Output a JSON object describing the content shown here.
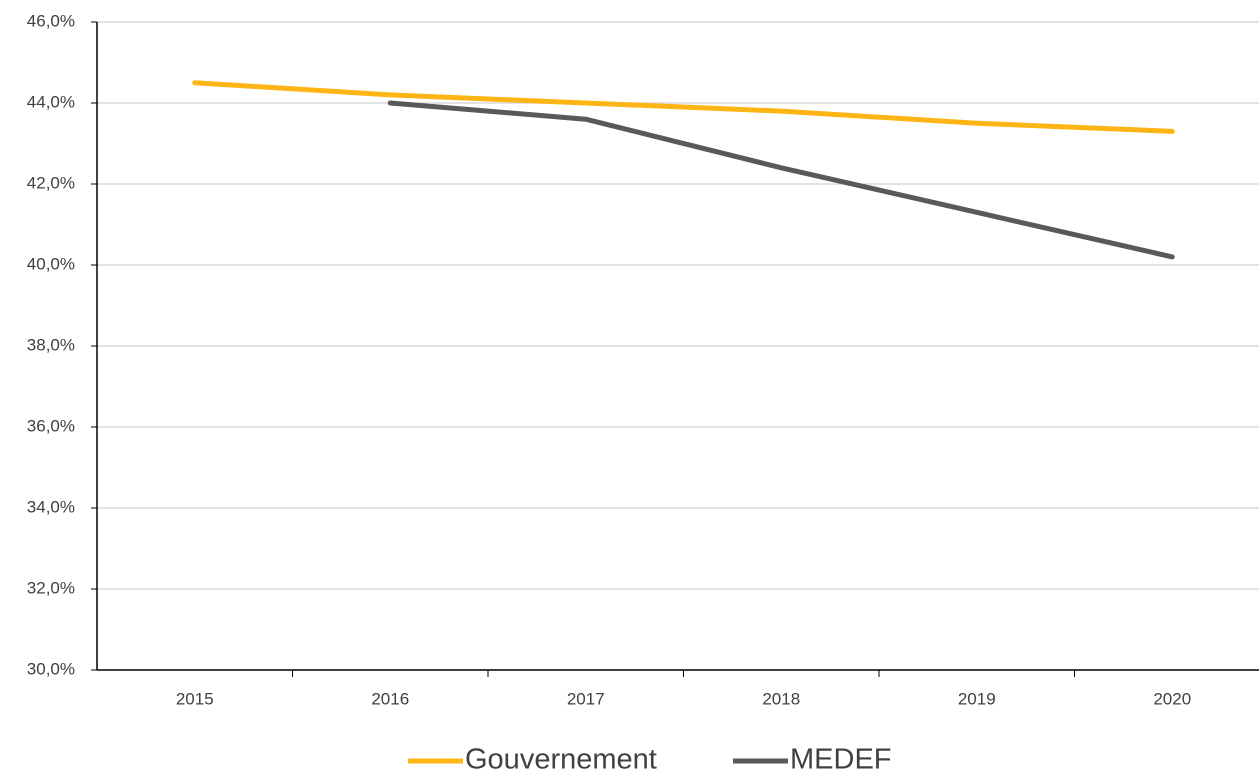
{
  "chart_data": {
    "type": "line",
    "categories": [
      "2015",
      "2016",
      "2017",
      "2018",
      "2019",
      "2020"
    ],
    "series": [
      {
        "name": "Gouvernement",
        "color": "#fdb515",
        "values": [
          44.5,
          44.2,
          44.0,
          43.8,
          43.5,
          43.3
        ]
      },
      {
        "name": "MEDEF",
        "color": "#595959",
        "values": [
          null,
          44.0,
          43.6,
          42.4,
          41.3,
          40.2
        ]
      }
    ],
    "ylim": [
      30,
      46
    ],
    "yticks": [
      {
        "value": 30,
        "label": "30,0%"
      },
      {
        "value": 32,
        "label": "32,0%"
      },
      {
        "value": 34,
        "label": "34,0%"
      },
      {
        "value": 36,
        "label": "36,0%"
      },
      {
        "value": 38,
        "label": "38,0%"
      },
      {
        "value": 40,
        "label": "40,0%"
      },
      {
        "value": 42,
        "label": "42,0%"
      },
      {
        "value": 44,
        "label": "44,0%"
      },
      {
        "value": 46,
        "label": "46,0%"
      }
    ],
    "grid": true,
    "legend": "bottom"
  }
}
